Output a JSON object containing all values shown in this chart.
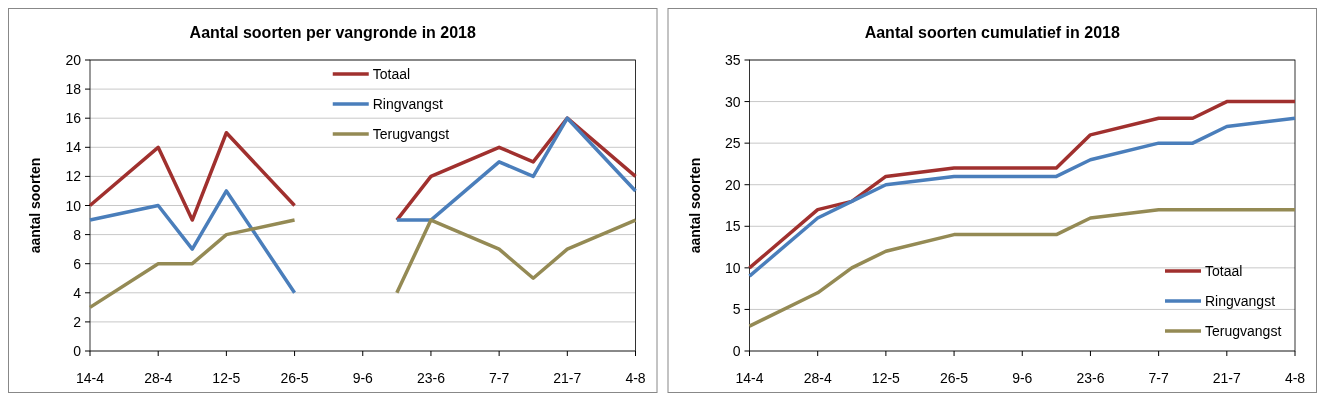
{
  "chart_data": [
    {
      "type": "line",
      "title": "Aantal soorten per vangronde in 2018",
      "ylabel": "aantal soorten",
      "x": [
        "--04-14",
        "--04-28",
        "--05-05",
        "--05-12",
        "--05-26",
        "--06-09",
        "--06-16",
        "--06-23",
        "--07-07",
        "--07-14",
        "--07-21",
        "--08-04"
      ],
      "series": [
        {
          "name": "Totaal",
          "color": "#a0302e",
          "values": [
            10,
            14,
            9,
            15,
            10,
            null,
            9,
            12,
            14,
            13,
            16,
            12
          ]
        },
        {
          "name": "Ringvangst",
          "color": "#4a7ebb",
          "values": [
            9,
            10,
            7,
            11,
            4,
            null,
            9,
            9,
            13,
            12,
            16,
            11
          ]
        },
        {
          "name": "Terugvangst",
          "color": "#948a54",
          "values": [
            3,
            6,
            6,
            8,
            9,
            null,
            4,
            9,
            7,
            5,
            7,
            9
          ]
        }
      ],
      "xlim": [
        "--04-14",
        "--08-04"
      ],
      "xticks": [
        {
          "value": "--04-14",
          "label": "14-4"
        },
        {
          "value": "--04-28",
          "label": "28-4"
        },
        {
          "value": "--05-12",
          "label": "12-5"
        },
        {
          "value": "--05-26",
          "label": "26-5"
        },
        {
          "value": "--06-09",
          "label": "9-6"
        },
        {
          "value": "--06-23",
          "label": "23-6"
        },
        {
          "value": "--07-07",
          "label": "7-7"
        },
        {
          "value": "--07-21",
          "label": "21-7"
        },
        {
          "value": "--08-04",
          "label": "4-8"
        }
      ],
      "ylim": [
        0,
        20
      ],
      "yticks": [
        0,
        2,
        4,
        6,
        8,
        10,
        12,
        14,
        16,
        18,
        20
      ],
      "grid": "y",
      "legend": "top",
      "marker": "none",
      "line_style": "solid"
    },
    {
      "type": "line",
      "title": "Aantal soorten cumulatief in 2018",
      "ylabel": "aantal soorten",
      "x": [
        "--04-14",
        "--04-28",
        "--05-05",
        "--05-12",
        "--05-26",
        "--06-16",
        "--06-23",
        "--07-07",
        "--07-14",
        "--07-21",
        "--08-04"
      ],
      "series": [
        {
          "name": "Totaal",
          "color": "#a0302e",
          "values": [
            10,
            17,
            18,
            21,
            22,
            22,
            26,
            28,
            28,
            30,
            30
          ]
        },
        {
          "name": "Ringvangst",
          "color": "#4a7ebb",
          "values": [
            9,
            16,
            18,
            20,
            21,
            21,
            23,
            25,
            25,
            27,
            28
          ]
        },
        {
          "name": "Terugvangst",
          "color": "#948a54",
          "values": [
            3,
            7,
            10,
            12,
            14,
            14,
            16,
            17,
            17,
            17,
            17
          ]
        }
      ],
      "xlim": [
        "--04-14",
        "--08-04"
      ],
      "xticks": [
        {
          "value": "--04-14",
          "label": "14-4"
        },
        {
          "value": "--04-28",
          "label": "28-4"
        },
        {
          "value": "--05-12",
          "label": "12-5"
        },
        {
          "value": "--05-26",
          "label": "26-5"
        },
        {
          "value": "--06-09",
          "label": "9-6"
        },
        {
          "value": "--06-23",
          "label": "23-6"
        },
        {
          "value": "--07-07",
          "label": "7-7"
        },
        {
          "value": "--07-21",
          "label": "21-7"
        },
        {
          "value": "--08-04",
          "label": "4-8"
        }
      ],
      "ylim": [
        0,
        35
      ],
      "yticks": [
        0,
        5,
        10,
        15,
        20,
        25,
        30,
        35
      ],
      "grid": "y",
      "legend": "bottom right",
      "marker": "none",
      "line_style": "solid"
    }
  ]
}
